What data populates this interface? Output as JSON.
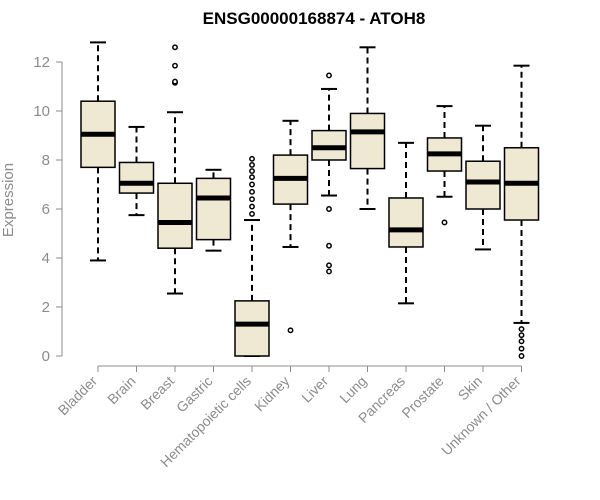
{
  "chart_data": {
    "type": "boxplot",
    "title": "ENSG00000168874 - ATOH8",
    "xlabel": "",
    "ylabel": "Expression",
    "ylim": [
      0,
      12
    ],
    "yticks": [
      0,
      2,
      4,
      6,
      8,
      10,
      12
    ],
    "box_fill": "#efe8d2",
    "box_stroke": "#000000",
    "axis_color": "#8c8c8c",
    "categories": [
      "Bladder",
      "Brain",
      "Breast",
      "Gastric",
      "Hematopoietic cells",
      "Kidney",
      "Liver",
      "Lung",
      "Pancreas",
      "Prostate",
      "Skin",
      "Unknown / Other"
    ],
    "boxes": [
      {
        "name": "Bladder",
        "min": 3.9,
        "q1": 7.7,
        "median": 9.05,
        "q3": 10.4,
        "max": 12.8,
        "outliers": []
      },
      {
        "name": "Brain",
        "min": 5.75,
        "q1": 6.65,
        "median": 7.05,
        "q3": 7.9,
        "max": 9.35,
        "outliers": []
      },
      {
        "name": "Breast",
        "min": 2.55,
        "q1": 4.4,
        "median": 5.45,
        "q3": 7.05,
        "max": 9.95,
        "outliers": [
          11.15,
          11.2,
          11.85,
          12.6
        ]
      },
      {
        "name": "Gastric",
        "min": 4.3,
        "q1": 4.75,
        "median": 6.45,
        "q3": 7.25,
        "max": 7.6,
        "outliers": []
      },
      {
        "name": "Hematopoietic cells",
        "min": 0.0,
        "q1": 0.0,
        "median": 1.3,
        "q3": 2.25,
        "max": 5.55,
        "outliers": [
          5.8,
          6.1,
          6.4,
          6.7,
          7.0,
          7.3,
          7.55,
          7.8,
          8.05
        ]
      },
      {
        "name": "Kidney",
        "min": 4.45,
        "q1": 6.2,
        "median": 7.25,
        "q3": 8.2,
        "max": 9.6,
        "outliers": [
          1.05
        ]
      },
      {
        "name": "Liver",
        "min": 6.55,
        "q1": 8.0,
        "median": 8.5,
        "q3": 9.2,
        "max": 10.9,
        "outliers": [
          3.45,
          3.7,
          4.5,
          6.0,
          11.45
        ]
      },
      {
        "name": "Lung",
        "min": 6.0,
        "q1": 7.65,
        "median": 9.15,
        "q3": 9.9,
        "max": 12.6,
        "outliers": []
      },
      {
        "name": "Pancreas",
        "min": 2.15,
        "q1": 4.45,
        "median": 5.15,
        "q3": 6.45,
        "max": 8.7,
        "outliers": []
      },
      {
        "name": "Prostate",
        "min": 6.5,
        "q1": 7.55,
        "median": 8.25,
        "q3": 8.9,
        "max": 10.2,
        "outliers": [
          5.45
        ]
      },
      {
        "name": "Skin",
        "min": 4.35,
        "q1": 6.0,
        "median": 7.1,
        "q3": 7.95,
        "max": 9.4,
        "outliers": []
      },
      {
        "name": "Unknown / Other",
        "min": 1.35,
        "q1": 5.55,
        "median": 7.05,
        "q3": 8.5,
        "max": 11.85,
        "outliers": [
          0.0,
          0.3,
          0.6,
          0.85,
          1.1
        ]
      }
    ]
  }
}
